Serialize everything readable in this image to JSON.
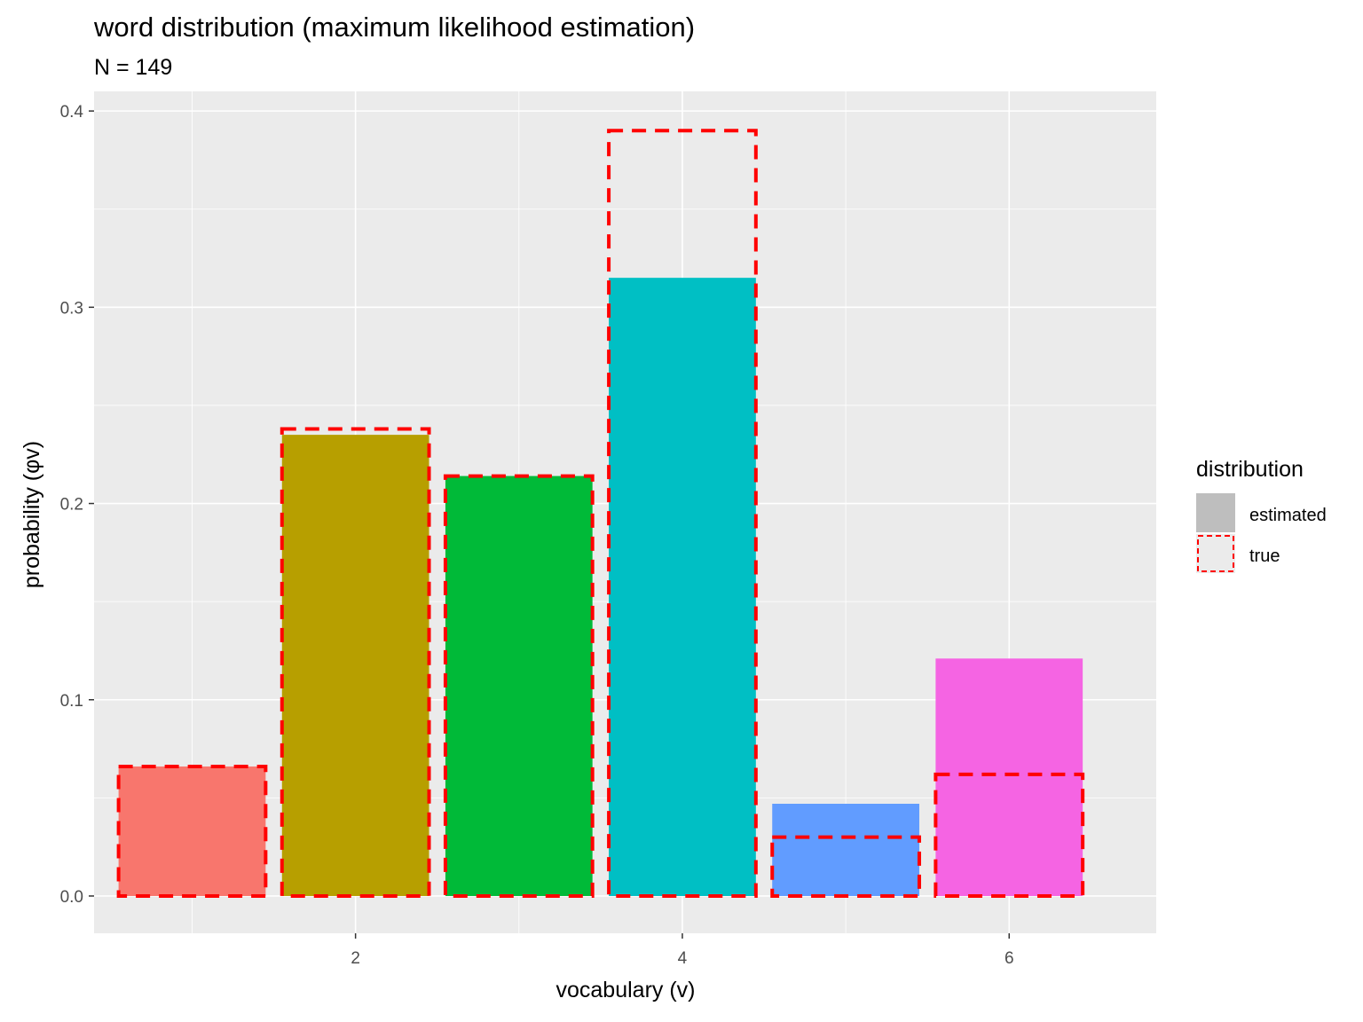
{
  "chart_data": {
    "type": "bar",
    "title": "word distribution (maximum likelihood estimation)",
    "subtitle": "N = 149",
    "xlabel": "vocabulary (v)",
    "ylabel": "probability (φv)",
    "xlim": [
      0.4,
      6.9
    ],
    "ylim": [
      -0.019,
      0.41
    ],
    "x_ticks": [
      2,
      4,
      6
    ],
    "y_ticks": [
      0.0,
      0.1,
      0.2,
      0.3,
      0.4
    ],
    "y_tick_labels": [
      "0.0",
      "0.1",
      "0.2",
      "0.3",
      "0.4"
    ],
    "grid": true,
    "legend_position": "right",
    "legend": {
      "title": "distribution",
      "entries": [
        {
          "label": "estimated",
          "style": "filled"
        },
        {
          "label": "true",
          "style": "dashed-outline",
          "color": "#ff0000"
        }
      ]
    },
    "bar_width": 0.9,
    "x": [
      1,
      2,
      3,
      4,
      5,
      6
    ],
    "colors": [
      "#f8766d",
      "#b79f00",
      "#00ba38",
      "#00bfc4",
      "#619cff",
      "#f564e3"
    ],
    "series": [
      {
        "name": "estimated",
        "values": [
          0.066,
          0.235,
          0.214,
          0.315,
          0.047,
          0.121
        ]
      },
      {
        "name": "true",
        "values": [
          0.066,
          0.238,
          0.214,
          0.39,
          0.03,
          0.062
        ]
      }
    ]
  }
}
